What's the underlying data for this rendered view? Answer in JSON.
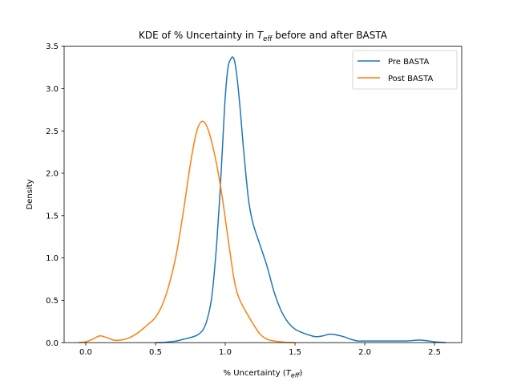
{
  "chart_data": {
    "type": "line",
    "title_main": "KDE of % Uncertainty in ",
    "title_var": "T",
    "title_sub": "eff",
    "title_tail": " before and after BASTA",
    "xlabel_main": "% Uncertainty (",
    "xlabel_var": "T",
    "xlabel_sub": "eff",
    "xlabel_tail": ")",
    "ylabel": "Density",
    "xlim": [
      -0.155,
      2.695
    ],
    "ylim": [
      0,
      3.5
    ],
    "xticks": [
      0.0,
      0.5,
      1.0,
      1.5,
      2.0,
      2.5
    ],
    "xtick_labels": [
      "0.0",
      "0.5",
      "1.0",
      "1.5",
      "2.0",
      "2.5"
    ],
    "yticks": [
      0.0,
      0.5,
      1.0,
      1.5,
      2.0,
      2.5,
      3.0,
      3.5
    ],
    "ytick_labels": [
      "0.0",
      "0.5",
      "1.0",
      "1.5",
      "2.0",
      "2.5",
      "3.0",
      "3.5"
    ],
    "grid": false,
    "legend_position": "top-right",
    "series": [
      {
        "name": "Pre BASTA",
        "color": "#1f77b4",
        "x": [
          0.5,
          0.55,
          0.6,
          0.65,
          0.7,
          0.75,
          0.8,
          0.84,
          0.87,
          0.9,
          0.92,
          0.94,
          0.96,
          0.98,
          1.0,
          1.02,
          1.04,
          1.055,
          1.07,
          1.09,
          1.11,
          1.13,
          1.15,
          1.17,
          1.2,
          1.25,
          1.3,
          1.35,
          1.4,
          1.45,
          1.5,
          1.55,
          1.6,
          1.65,
          1.7,
          1.75,
          1.8,
          1.85,
          1.9,
          1.95,
          2.0,
          2.1,
          2.2,
          2.3,
          2.4,
          2.5,
          2.58
        ],
        "y": [
          0.0,
          0.0,
          0.01,
          0.02,
          0.04,
          0.06,
          0.09,
          0.15,
          0.27,
          0.5,
          0.8,
          1.2,
          1.7,
          2.3,
          2.9,
          3.25,
          3.35,
          3.37,
          3.3,
          3.05,
          2.7,
          2.3,
          1.95,
          1.65,
          1.4,
          1.15,
          0.9,
          0.6,
          0.38,
          0.24,
          0.16,
          0.12,
          0.09,
          0.07,
          0.08,
          0.1,
          0.09,
          0.07,
          0.04,
          0.02,
          0.02,
          0.02,
          0.02,
          0.02,
          0.03,
          0.01,
          0.0
        ]
      },
      {
        "name": "Post BASTA",
        "color": "#ff7f0e",
        "x": [
          -0.05,
          0.0,
          0.05,
          0.1,
          0.15,
          0.2,
          0.25,
          0.3,
          0.35,
          0.4,
          0.45,
          0.5,
          0.55,
          0.6,
          0.65,
          0.7,
          0.74,
          0.77,
          0.8,
          0.83,
          0.86,
          0.89,
          0.92,
          0.95,
          0.98,
          1.01,
          1.04,
          1.06,
          1.08,
          1.1,
          1.12,
          1.15,
          1.2,
          1.25,
          1.3,
          1.35,
          1.4,
          1.45,
          1.5
        ],
        "y": [
          0.0,
          0.01,
          0.04,
          0.08,
          0.06,
          0.03,
          0.03,
          0.05,
          0.09,
          0.15,
          0.22,
          0.3,
          0.45,
          0.7,
          1.05,
          1.55,
          2.0,
          2.3,
          2.52,
          2.61,
          2.58,
          2.45,
          2.25,
          2.0,
          1.7,
          1.35,
          1.0,
          0.78,
          0.62,
          0.52,
          0.45,
          0.36,
          0.22,
          0.1,
          0.04,
          0.02,
          0.01,
          0.0,
          0.0
        ]
      }
    ]
  }
}
